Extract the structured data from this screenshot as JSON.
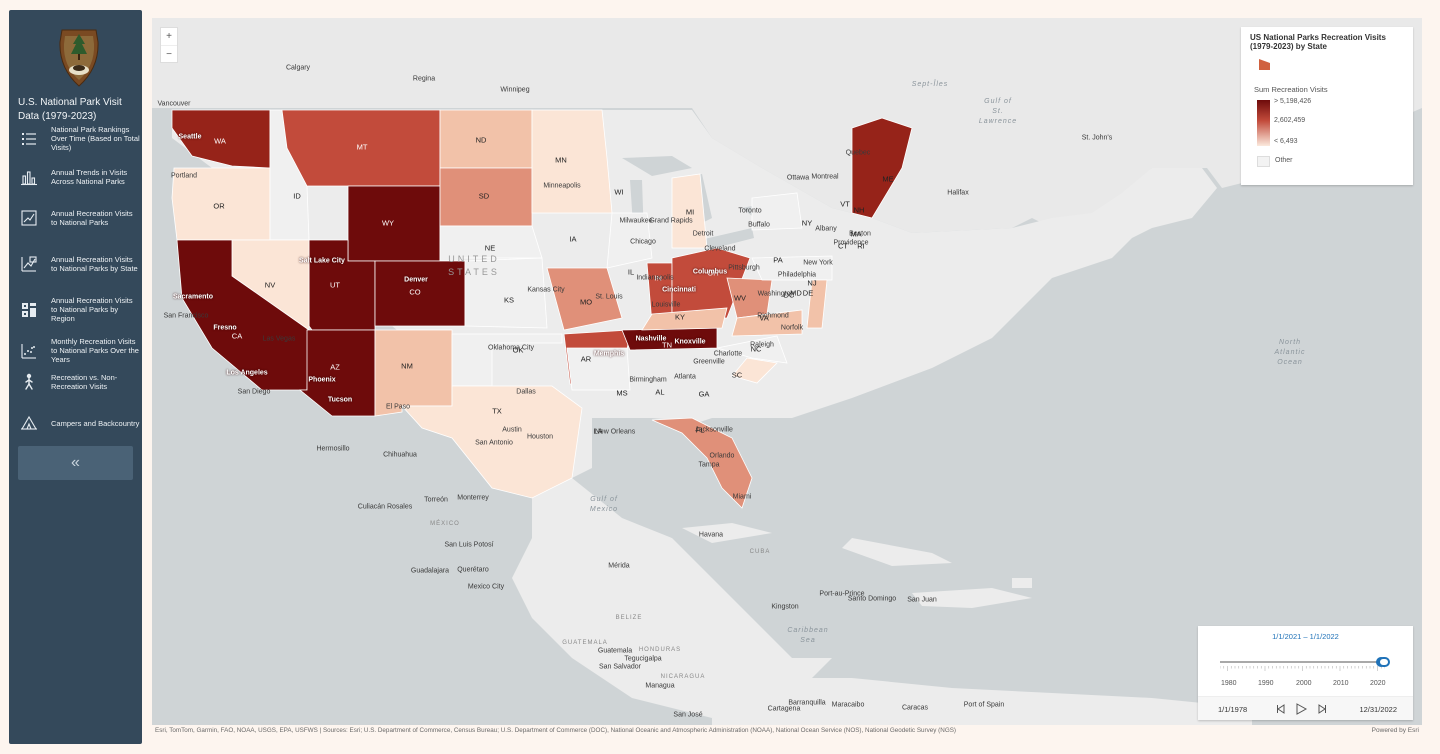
{
  "app": {
    "title": "U.S. National Park Visit Data (1979-2023)"
  },
  "sidebar": {
    "items": [
      {
        "label": "National Park Rankings Over Time (Based on Total Visits)",
        "icon": "ranked-list-icon"
      },
      {
        "label": "Annual Trends in Visits Across National Parks",
        "icon": "bar-chart-icon"
      },
      {
        "label": "Annual Recreation Visits to National Parks",
        "icon": "line-chart-icon"
      },
      {
        "label": "Annual Recreation Visits to National Parks by State",
        "icon": "line-chart-state-icon"
      },
      {
        "label": "Annual Recreation Visits to National Parks by Region",
        "icon": "region-chart-icon"
      },
      {
        "label": "Monthly Recreation Visits to National Parks Over the Years",
        "icon": "scatter-chart-icon"
      },
      {
        "label": "Recreation vs. Non-Recreation Visits",
        "icon": "hiker-icon"
      },
      {
        "label": "Campers and Backcountry",
        "icon": "tent-icon"
      }
    ],
    "collapse_label": "«"
  },
  "map": {
    "zoom_in": "+",
    "zoom_out": "−",
    "legend": {
      "title": "US National Parks Recreation Visits (1979-2023) by State",
      "field": "Sum Recreation Visits",
      "high": "> 5,198,426",
      "mid": "2,602,459",
      "low": "< 6,493",
      "other": "Other"
    },
    "colors": {
      "darkest": "#6e0b0b",
      "dark": "#962319",
      "medium_dark": "#c24b3b",
      "medium": "#e09079",
      "light": "#f2c2a9",
      "lightest": "#fbe5d6",
      "other": "#f0f0f0",
      "water": "#cfd4d6",
      "land": "#ececec"
    },
    "state_labels": [
      "WA",
      "MT",
      "ND",
      "MN",
      "OR",
      "ID",
      "WY",
      "SD",
      "WI",
      "MI",
      "NE",
      "IA",
      "NV",
      "UT",
      "CO",
      "KS",
      "MO",
      "IL",
      "CA",
      "AZ",
      "NM",
      "OK",
      "AR",
      "TX",
      "LA",
      "MS",
      "AL",
      "GA",
      "TN",
      "KY",
      "IN",
      "OH",
      "WV",
      "VA",
      "PA",
      "NY",
      "NC",
      "SC",
      "FL",
      "ME",
      "VT",
      "NH",
      "MA",
      "CT",
      "RI",
      "NJ",
      "DE",
      "MD",
      "DC"
    ],
    "city_labels": [
      "Vancouver",
      "Calgary",
      "Regina",
      "Winnipeg",
      "Seattle",
      "Portland",
      "Salt Lake City",
      "Denver",
      "Sacramento",
      "San Francisco",
      "Fresno",
      "Las Vegas",
      "Los Angeles",
      "San Diego",
      "Phoenix",
      "Tucson",
      "El Paso",
      "Oklahoma City",
      "Kansas City",
      "St. Louis",
      "Indianapolis",
      "Cincinnati",
      "Louisville",
      "Nashville",
      "Knoxville",
      "Memphis",
      "Dallas",
      "Austin",
      "San Antonio",
      "Houston",
      "New Orleans",
      "Birmingham",
      "Atlanta",
      "Jacksonville",
      "Orlando",
      "Tampa",
      "Miami",
      "Charlotte",
      "Greenville",
      "Raleigh",
      "Richmond",
      "Norfolk",
      "Washington",
      "Philadelphia",
      "New York",
      "Boston",
      "Providence",
      "Albany",
      "Ottawa",
      "Montreal",
      "Quebec",
      "Toronto",
      "Buffalo",
      "Detroit",
      "Cleveland",
      "Columbus",
      "Pittsburgh",
      "Chicago",
      "Milwaukee",
      "Grand Rapids",
      "Minneapolis",
      "Halifax",
      "St. John's",
      "Hermosillo",
      "Chihuahua",
      "Torreón",
      "Monterrey",
      "Culiacán Rosales",
      "San Luis Potosí",
      "Guadalajara",
      "Querétaro",
      "Mexico City",
      "Mérida",
      "Havana",
      "Kingston",
      "Port-au-Prince",
      "Santo Domingo",
      "San Juan",
      "Guatemala",
      "San Salvador",
      "Tegucigalpa",
      "Managua",
      "San José",
      "Barranquilla",
      "Cartagena",
      "Maracaibo",
      "Caracas",
      "Port of Spain"
    ],
    "water_labels": [
      "Gulf of Mexico",
      "North Atlantic Ocean",
      "Caribbean Sea",
      "Gulf of St. Lawrence",
      "Sept-Îles"
    ],
    "country_labels": [
      "UNITED STATES",
      "MÉXICO",
      "CUBA",
      "BELIZE",
      "GUATEMALA",
      "HONDURAS",
      "NICARAGUA"
    ]
  },
  "time_slider": {
    "range": "1/1/2021  –  1/1/2022",
    "years": [
      "1980",
      "1990",
      "2000",
      "2010",
      "2020"
    ],
    "start": "1/1/1978",
    "end": "12/31/2022",
    "position": 0.98
  },
  "attribution": "Esri, TomTom, Garmin, FAO, NOAA, USGS, EPA, USFWS | Sources: Esri; U.S. Department of Commerce, Census Bureau; U.S. Department of Commerce (DOC), National Oceanic and Atmospheric Administration (NOAA), National Ocean Service (NOS), National Geodetic Survey (NGS)",
  "powered_by": "Powered by Esri"
}
